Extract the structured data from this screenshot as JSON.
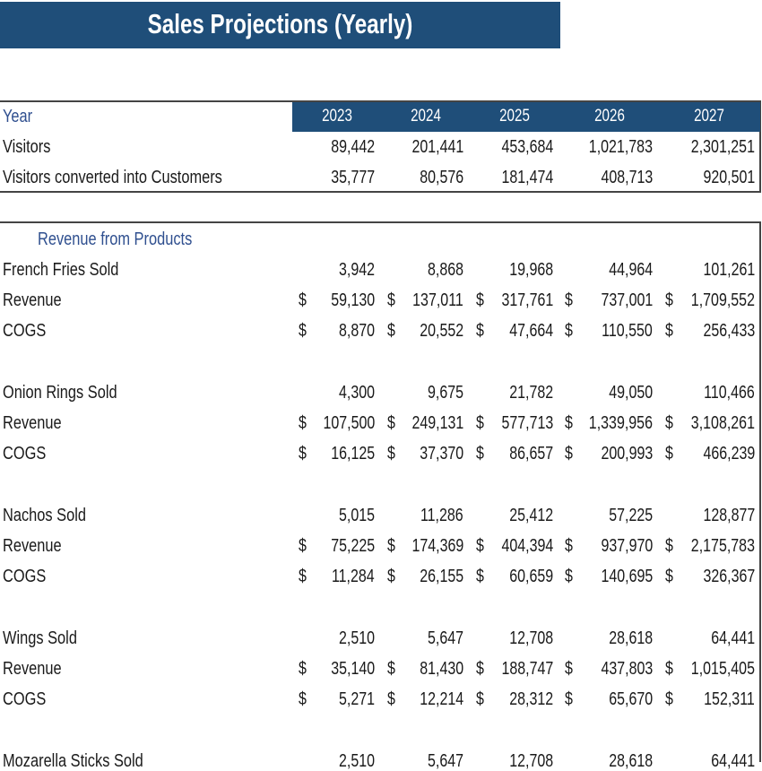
{
  "title": "Sales Projections (Yearly)",
  "colors": {
    "header_bg": "#1f4e79",
    "header_text": "#ffffff",
    "label_blue": "#2f4f8f"
  },
  "summary": {
    "year_label": "Year",
    "years": [
      "2023",
      "2024",
      "2025",
      "2026",
      "2027"
    ],
    "rows": [
      {
        "label": "Visitors",
        "values": [
          "89,442",
          "201,441",
          "453,684",
          "1,021,783",
          "2,301,251"
        ]
      },
      {
        "label": "Visitors converted into Customers",
        "values": [
          "35,777",
          "80,576",
          "181,474",
          "408,713",
          "920,501"
        ]
      }
    ]
  },
  "revenue": {
    "section_title": "Revenue from Products",
    "currency_symbol": "$",
    "products": [
      {
        "sold_label": "French Fries Sold",
        "sold": [
          "3,942",
          "8,868",
          "19,968",
          "44,964",
          "101,261"
        ],
        "revenue_label": "Revenue",
        "revenue": [
          "59,130",
          "137,011",
          "317,761",
          "737,001",
          "1,709,552"
        ],
        "cogs_label": "COGS",
        "cogs": [
          "8,870",
          "20,552",
          "47,664",
          "110,550",
          "256,433"
        ]
      },
      {
        "sold_label": "Onion Rings Sold",
        "sold": [
          "4,300",
          "9,675",
          "21,782",
          "49,050",
          "110,466"
        ],
        "revenue_label": "Revenue",
        "revenue": [
          "107,500",
          "249,131",
          "577,713",
          "1,339,956",
          "3,108,261"
        ],
        "cogs_label": "COGS",
        "cogs": [
          "16,125",
          "37,370",
          "86,657",
          "200,993",
          "466,239"
        ]
      },
      {
        "sold_label": "Nachos Sold",
        "sold": [
          "5,015",
          "11,286",
          "25,412",
          "57,225",
          "128,877"
        ],
        "revenue_label": "Revenue",
        "revenue": [
          "75,225",
          "174,369",
          "404,394",
          "937,970",
          "2,175,783"
        ],
        "cogs_label": "COGS",
        "cogs": [
          "11,284",
          "26,155",
          "60,659",
          "140,695",
          "326,367"
        ]
      },
      {
        "sold_label": "Wings Sold",
        "sold": [
          "2,510",
          "5,647",
          "12,708",
          "28,618",
          "64,441"
        ],
        "revenue_label": "Revenue",
        "revenue": [
          "35,140",
          "81,430",
          "188,747",
          "437,803",
          "1,015,405"
        ],
        "cogs_label": "COGS",
        "cogs": [
          "5,271",
          "12,214",
          "28,312",
          "65,670",
          "152,311"
        ]
      },
      {
        "sold_label": "Mozarella Sticks Sold",
        "sold": [
          "2,510",
          "5,647",
          "12,708",
          "28,618",
          "64,441"
        ]
      }
    ]
  }
}
